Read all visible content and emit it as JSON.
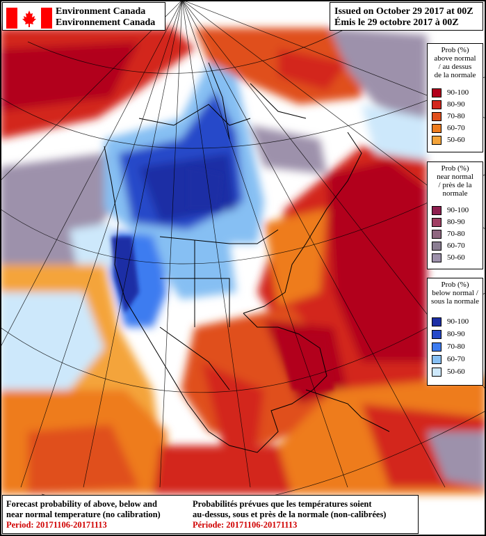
{
  "header": {
    "agency_en": "Environment Canada",
    "agency_fr": "Environnement Canada",
    "issued_en": "Issued on October 29 2017 at 00Z",
    "issued_fr": "Émis le 29 octobre 2017 à 00Z"
  },
  "legends": {
    "above": {
      "title_lines": [
        "Prob (%)",
        "above normal",
        "/ au dessus",
        "de la normale"
      ],
      "bins": [
        {
          "label": "90-100",
          "color": "#b2001c"
        },
        {
          "label": "80-90",
          "color": "#d3261d"
        },
        {
          "label": "70-80",
          "color": "#e04f1c"
        },
        {
          "label": "60-70",
          "color": "#ee7c1e"
        },
        {
          "label": "50-60",
          "color": "#f4a43a"
        }
      ]
    },
    "near": {
      "title_lines": [
        "Prob (%)",
        "near normal",
        "/ près de la",
        "normale"
      ],
      "bins": [
        {
          "label": "90-100",
          "color": "#8e1f4f"
        },
        {
          "label": "80-90",
          "color": "#a03f63"
        },
        {
          "label": "70-80",
          "color": "#8f6680"
        },
        {
          "label": "60-70",
          "color": "#8a7d92"
        },
        {
          "label": "50-60",
          "color": "#9d91ab"
        }
      ]
    },
    "below": {
      "title_lines": [
        "Prob (%)",
        "below normal /",
        "sous la normale"
      ],
      "bins": [
        {
          "label": "90-100",
          "color": "#1d2fa5"
        },
        {
          "label": "80-90",
          "color": "#2548c9"
        },
        {
          "label": "70-80",
          "color": "#3c7bf0"
        },
        {
          "label": "60-70",
          "color": "#86bff3"
        },
        {
          "label": "50-60",
          "color": "#cde8fb"
        }
      ]
    }
  },
  "footer": {
    "en_line1": "Forecast probability of above, below and",
    "en_line2": "near normal temperature (no calibration)",
    "en_period": "Period: 20171106-20171113",
    "fr_line1": "Probabilités prévues que les températures soient",
    "fr_line2": "au-dessus, sous et près de la normale (non-calibrées)",
    "fr_period": "Période: 20171106-20171113"
  },
  "colors": {
    "ocean_near": "#9d91ab",
    "above_dark": "#b2001c",
    "above_orange": "#ee7c1e",
    "below_dark": "#2548c9",
    "below_light": "#cde8fb",
    "border_line": "#000000",
    "flag_red": "#ff0000"
  }
}
